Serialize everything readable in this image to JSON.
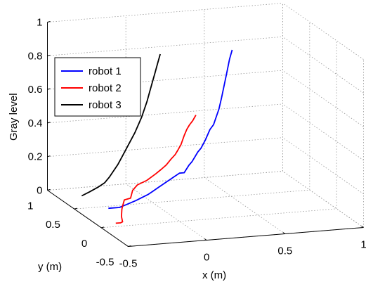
{
  "chart_data": {
    "type": "line",
    "title": "",
    "xlabel": "x (m)",
    "ylabel": "y (m)",
    "zlabel": "Gray level",
    "xlim": [
      -0.5,
      1
    ],
    "ylim": [
      -0.5,
      1
    ],
    "zlim": [
      0,
      1
    ],
    "x_ticks": [
      "-0.5",
      "0",
      "0.5",
      "1"
    ],
    "y_ticks": [
      "-0.5",
      "0",
      "0.5",
      "1"
    ],
    "z_ticks": [
      "0",
      "0.2",
      "0.4",
      "0.6",
      "0.8",
      "1"
    ],
    "grid": true,
    "legend_position": "top-left",
    "series": [
      {
        "name": "robot 1",
        "color": "#0000ff",
        "points": [
          {
            "x": -0.3,
            "y": 0.45,
            "z": 0.0
          },
          {
            "x": -0.25,
            "y": 0.45,
            "z": 0.0
          },
          {
            "x": -0.23,
            "y": 0.45,
            "z": 0.0
          },
          {
            "x": -0.2,
            "y": 0.42,
            "z": 0.02
          },
          {
            "x": -0.15,
            "y": 0.38,
            "z": 0.05
          },
          {
            "x": -0.1,
            "y": 0.3,
            "z": 0.1
          },
          {
            "x": -0.08,
            "y": 0.28,
            "z": 0.12
          },
          {
            "x": -0.05,
            "y": 0.25,
            "z": 0.15
          },
          {
            "x": -0.02,
            "y": 0.22,
            "z": 0.18
          },
          {
            "x": 0.02,
            "y": 0.18,
            "z": 0.22
          },
          {
            "x": 0.05,
            "y": 0.15,
            "z": 0.25
          },
          {
            "x": 0.08,
            "y": 0.15,
            "z": 0.25
          },
          {
            "x": 0.1,
            "y": 0.12,
            "z": 0.3
          },
          {
            "x": 0.12,
            "y": 0.12,
            "z": 0.32
          },
          {
            "x": 0.15,
            "y": 0.1,
            "z": 0.38
          },
          {
            "x": 0.17,
            "y": 0.1,
            "z": 0.4
          },
          {
            "x": 0.19,
            "y": 0.08,
            "z": 0.45
          },
          {
            "x": 0.21,
            "y": 0.05,
            "z": 0.52
          },
          {
            "x": 0.23,
            "y": 0.04,
            "z": 0.55
          },
          {
            "x": 0.24,
            "y": 0.02,
            "z": 0.6
          },
          {
            "x": 0.25,
            "y": 0.0,
            "z": 0.65
          },
          {
            "x": 0.26,
            "y": -0.02,
            "z": 0.72
          },
          {
            "x": 0.27,
            "y": -0.04,
            "z": 0.8
          },
          {
            "x": 0.28,
            "y": -0.06,
            "z": 0.88
          },
          {
            "x": 0.29,
            "y": -0.08,
            "z": 0.96
          },
          {
            "x": 0.3,
            "y": -0.1,
            "z": 1.02
          }
        ]
      },
      {
        "name": "robot 2",
        "color": "#ff0000",
        "points": [
          {
            "x": -0.38,
            "y": 0.08,
            "z": 0.0
          },
          {
            "x": -0.35,
            "y": 0.08,
            "z": 0.0
          },
          {
            "x": -0.33,
            "y": 0.1,
            "z": 0.0
          },
          {
            "x": -0.32,
            "y": 0.15,
            "z": 0.02
          },
          {
            "x": -0.3,
            "y": 0.2,
            "z": 0.05
          },
          {
            "x": -0.28,
            "y": 0.25,
            "z": 0.05
          },
          {
            "x": -0.25,
            "y": 0.3,
            "z": 0.08
          },
          {
            "x": -0.2,
            "y": 0.33,
            "z": 0.08
          },
          {
            "x": -0.18,
            "y": 0.35,
            "z": 0.12
          },
          {
            "x": -0.15,
            "y": 0.35,
            "z": 0.15
          },
          {
            "x": -0.1,
            "y": 0.32,
            "z": 0.18
          },
          {
            "x": -0.05,
            "y": 0.3,
            "z": 0.22
          },
          {
            "x": -0.02,
            "y": 0.28,
            "z": 0.25
          },
          {
            "x": 0.0,
            "y": 0.25,
            "z": 0.28
          },
          {
            "x": 0.02,
            "y": 0.22,
            "z": 0.32
          },
          {
            "x": 0.04,
            "y": 0.2,
            "z": 0.35
          },
          {
            "x": 0.05,
            "y": 0.18,
            "z": 0.38
          },
          {
            "x": 0.06,
            "y": 0.15,
            "z": 0.42
          },
          {
            "x": 0.07,
            "y": 0.12,
            "z": 0.48
          },
          {
            "x": 0.08,
            "y": 0.1,
            "z": 0.52
          },
          {
            "x": 0.09,
            "y": 0.08,
            "z": 0.55
          },
          {
            "x": 0.1,
            "y": 0.05,
            "z": 0.58
          },
          {
            "x": 0.11,
            "y": 0.02,
            "z": 0.62
          }
        ]
      },
      {
        "name": "robot 3",
        "color": "#000000",
        "points": [
          {
            "x": -0.35,
            "y": 0.8,
            "z": 0.0
          },
          {
            "x": -0.3,
            "y": 0.8,
            "z": 0.02
          },
          {
            "x": -0.25,
            "y": 0.78,
            "z": 0.05
          },
          {
            "x": -0.22,
            "y": 0.75,
            "z": 0.08
          },
          {
            "x": -0.2,
            "y": 0.72,
            "z": 0.12
          },
          {
            "x": -0.18,
            "y": 0.7,
            "z": 0.16
          },
          {
            "x": -0.16,
            "y": 0.68,
            "z": 0.2
          },
          {
            "x": -0.14,
            "y": 0.66,
            "z": 0.25
          },
          {
            "x": -0.12,
            "y": 0.64,
            "z": 0.3
          },
          {
            "x": -0.1,
            "y": 0.62,
            "z": 0.35
          },
          {
            "x": -0.08,
            "y": 0.6,
            "z": 0.4
          },
          {
            "x": -0.06,
            "y": 0.58,
            "z": 0.46
          },
          {
            "x": -0.05,
            "y": 0.56,
            "z": 0.5
          },
          {
            "x": -0.04,
            "y": 0.54,
            "z": 0.55
          },
          {
            "x": -0.03,
            "y": 0.52,
            "z": 0.6
          },
          {
            "x": -0.02,
            "y": 0.5,
            "z": 0.66
          },
          {
            "x": -0.01,
            "y": 0.48,
            "z": 0.72
          },
          {
            "x": 0.0,
            "y": 0.46,
            "z": 0.78
          },
          {
            "x": 0.01,
            "y": 0.44,
            "z": 0.84
          },
          {
            "x": 0.02,
            "y": 0.42,
            "z": 0.9
          }
        ]
      }
    ]
  }
}
